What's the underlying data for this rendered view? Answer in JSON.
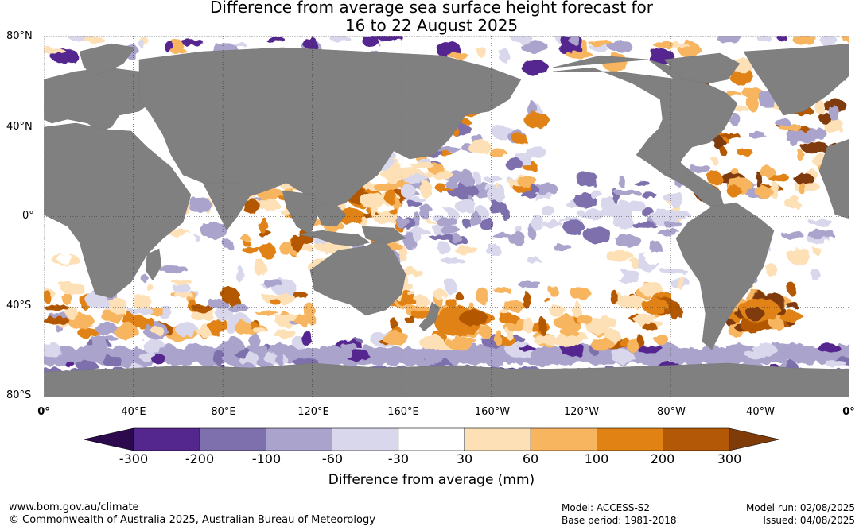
{
  "title_line1": "Difference from average sea surface height forecast for",
  "title_line2": "16 to 22 August 2025",
  "lat_labels": [
    "80°N",
    "40°N",
    "0°",
    "40°S",
    "80°S"
  ],
  "lon_labels": [
    "0°",
    "40°E",
    "80°E",
    "120°E",
    "160°E",
    "160°W",
    "120°W",
    "80°W",
    "40°W",
    "0°"
  ],
  "colorbar": {
    "ticks": [
      "-300",
      "-200",
      "-100",
      "-60",
      "-30",
      "30",
      "60",
      "100",
      "200",
      "300"
    ],
    "colors": [
      "#2d0a4e",
      "#54278f",
      "#7e70ac",
      "#aaa3cc",
      "#d8d7ec",
      "#ffffff",
      "#fde0b6",
      "#f8b560",
      "#e08214",
      "#b35806",
      "#7f3b08"
    ],
    "label": "Difference from average (mm)"
  },
  "map_colors": {
    "land": "#808080",
    "ocean": "#ffffff"
  },
  "footer": {
    "website": "www.bom.gov.au/climate",
    "copyright": "© Commonwealth of Australia 2025, Australian Bureau of Meteorology",
    "model": "Model: ACCESS-S2",
    "base_period": "Base period: 1981-2018",
    "model_run": "Model run: 02/08/2025",
    "issued": "Issued: 04/08/2025"
  }
}
